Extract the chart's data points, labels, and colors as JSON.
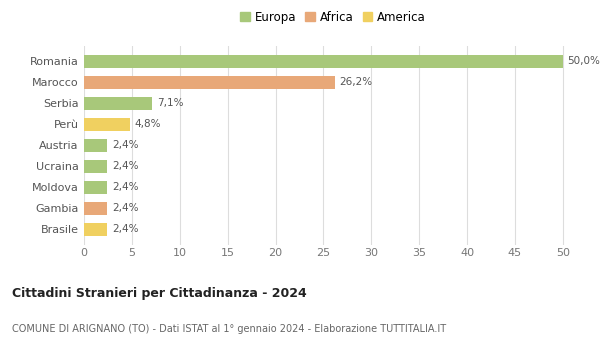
{
  "categories": [
    "Romania",
    "Marocco",
    "Serbia",
    "Perù",
    "Austria",
    "Ucraina",
    "Moldova",
    "Gambia",
    "Brasile"
  ],
  "values": [
    50.0,
    26.2,
    7.1,
    4.8,
    2.4,
    2.4,
    2.4,
    2.4,
    2.4
  ],
  "labels": [
    "50,0%",
    "26,2%",
    "7,1%",
    "4,8%",
    "2,4%",
    "2,4%",
    "2,4%",
    "2,4%",
    "2,4%"
  ],
  "colors": [
    "#a8c87a",
    "#e8a878",
    "#a8c87a",
    "#f0d060",
    "#a8c87a",
    "#a8c87a",
    "#a8c87a",
    "#e8a878",
    "#f0d060"
  ],
  "legend_labels": [
    "Europa",
    "Africa",
    "America"
  ],
  "legend_colors": [
    "#a8c87a",
    "#e8a878",
    "#f0d060"
  ],
  "xlim": [
    0,
    52
  ],
  "xticks": [
    0,
    5,
    10,
    15,
    20,
    25,
    30,
    35,
    40,
    45,
    50
  ],
  "title": "Cittadini Stranieri per Cittadinanza - 2024",
  "subtitle": "COMUNE DI ARIGNANO (TO) - Dati ISTAT al 1° gennaio 2024 - Elaborazione TUTTITALIA.IT",
  "background_color": "#ffffff",
  "grid_color": "#dddddd",
  "bar_height": 0.62
}
